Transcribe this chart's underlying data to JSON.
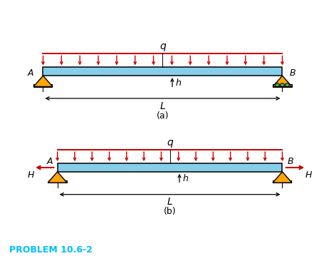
{
  "bg_color": "#ffffff",
  "beam_color": "#87CEEB",
  "beam_edge_color": "#000000",
  "arrow_color": "#cc0000",
  "triangle_color": "#FFA500",
  "triangle_edge": "#000000",
  "roller_color": "#4CAF50",
  "gray_base": "#c8c8c8",
  "text_color": "#000000",
  "problem_color": "#00BFFF",
  "label_a": "A",
  "label_b": "B",
  "label_q": "q",
  "label_h": "h",
  "label_L": "L",
  "label_H": "H",
  "label_a_fig": "(a)",
  "label_b_fig": "(b)",
  "problem_text": "PROBLEM 10.6-2",
  "figw": 4.48,
  "figh": 3.66,
  "dpi": 100
}
